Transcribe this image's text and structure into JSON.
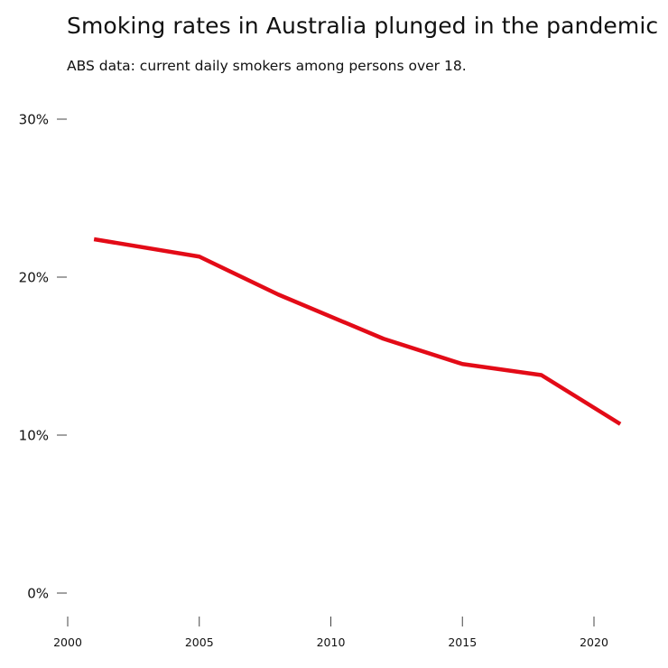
{
  "header": {
    "title": "Smoking rates in Australia plunged in the pandemic",
    "subtitle": "ABS data: current daily smokers among persons over 18."
  },
  "chart_data": {
    "type": "line",
    "title": "Smoking rates in Australia plunged in the pandemic",
    "subtitle": "ABS data: current daily smokers among persons over 18.",
    "xlabel": "",
    "ylabel": "",
    "xlim": [
      2000,
      2021
    ],
    "ylim": [
      0,
      30
    ],
    "x_ticks": [
      2000,
      2005,
      2010,
      2015,
      2020
    ],
    "x_tick_labels": [
      "2000",
      "2005",
      "2010",
      "2015",
      "2020"
    ],
    "y_ticks": [
      0,
      10,
      20,
      30
    ],
    "y_tick_labels": [
      "0%",
      "10%",
      "20%",
      "30%"
    ],
    "grid": false,
    "legend": "none",
    "series": [
      {
        "color": "#e30b17",
        "x": [
          2001,
          2005,
          2008,
          2012,
          2015,
          2018,
          2021
        ],
        "values": [
          22.4,
          21.3,
          18.9,
          16.1,
          14.5,
          13.8,
          10.7
        ]
      }
    ]
  }
}
